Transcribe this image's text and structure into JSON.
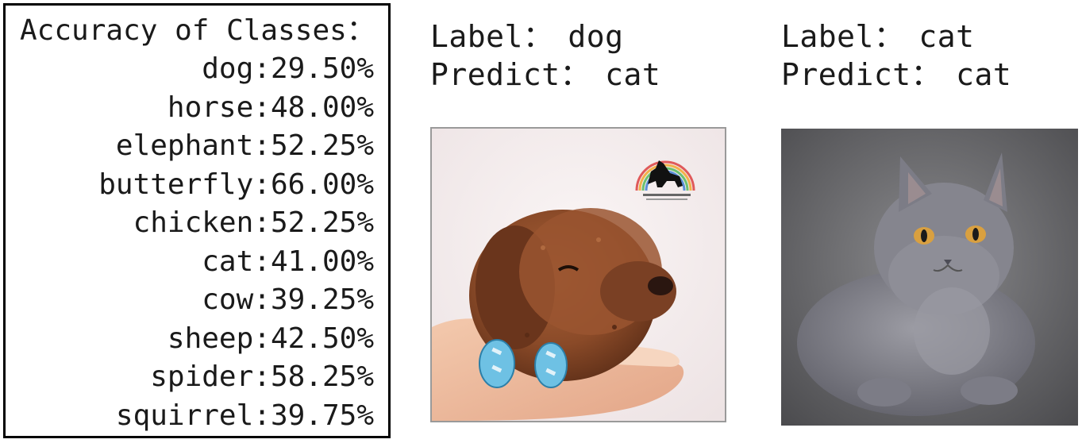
{
  "accuracy": {
    "title": "Accuracy of Classes：",
    "rows": [
      "dog:29.50%",
      "horse:48.00%",
      "elephant:52.25%",
      "butterfly:66.00%",
      "chicken:52.25%",
      "cat:41.00%",
      "cow:39.25%",
      "sheep:42.50%",
      "spider:58.25%",
      "squirrel:39.75%"
    ]
  },
  "samples": [
    {
      "label_caption": "Label：",
      "label_value": "dog",
      "predict_caption": "Predict：",
      "predict_value": "cat",
      "image_subject": "brown-puppy-photo"
    },
    {
      "label_caption": "Label：",
      "label_value": "cat",
      "predict_caption": "Predict：",
      "predict_value": "cat",
      "image_subject": "grey-cat-photo"
    }
  ]
}
